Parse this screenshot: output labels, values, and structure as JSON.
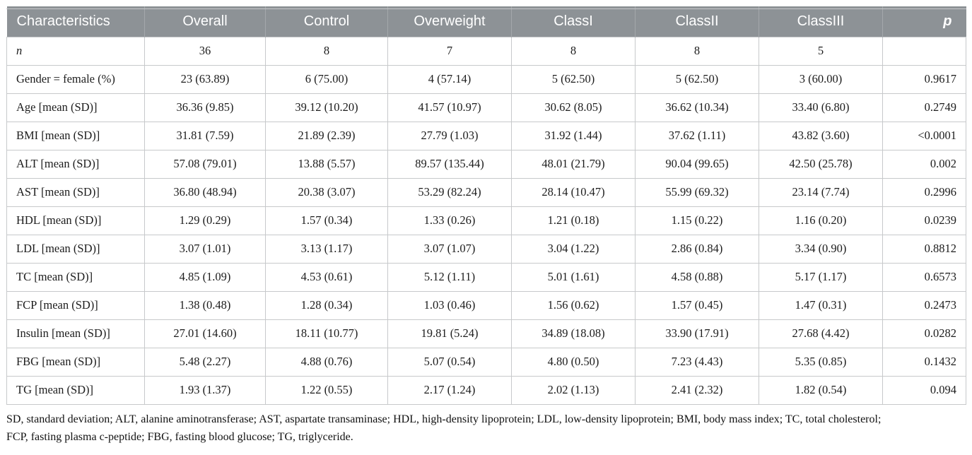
{
  "table": {
    "columns": [
      "Characteristics",
      "Overall",
      "Control",
      "Overweight",
      "ClassI",
      "ClassII",
      "ClassIII",
      "p"
    ],
    "rows": [
      {
        "label": "n",
        "italic": true,
        "values": [
          "36",
          "8",
          "7",
          "8",
          "8",
          "5",
          ""
        ]
      },
      {
        "label": "Gender = female (%)",
        "italic": false,
        "values": [
          "23 (63.89)",
          "6 (75.00)",
          "4 (57.14)",
          "5 (62.50)",
          "5 (62.50)",
          "3 (60.00)",
          "0.9617"
        ]
      },
      {
        "label": "Age [mean (SD)]",
        "italic": false,
        "values": [
          "36.36 (9.85)",
          "39.12 (10.20)",
          "41.57 (10.97)",
          "30.62 (8.05)",
          "36.62 (10.34)",
          "33.40 (6.80)",
          "0.2749"
        ]
      },
      {
        "label": "BMI [mean (SD)]",
        "italic": false,
        "values": [
          "31.81 (7.59)",
          "21.89 (2.39)",
          "27.79 (1.03)",
          "31.92 (1.44)",
          "37.62 (1.11)",
          "43.82 (3.60)",
          "<0.0001"
        ]
      },
      {
        "label": "ALT [mean (SD)]",
        "italic": false,
        "values": [
          "57.08 (79.01)",
          "13.88 (5.57)",
          "89.57 (135.44)",
          "48.01 (21.79)",
          "90.04 (99.65)",
          "42.50 (25.78)",
          "0.002"
        ]
      },
      {
        "label": "AST [mean (SD)]",
        "italic": false,
        "values": [
          "36.80 (48.94)",
          "20.38 (3.07)",
          "53.29 (82.24)",
          "28.14 (10.47)",
          "55.99 (69.32)",
          "23.14 (7.74)",
          "0.2996"
        ]
      },
      {
        "label": "HDL [mean (SD)]",
        "italic": false,
        "values": [
          "1.29 (0.29)",
          "1.57 (0.34)",
          "1.33 (0.26)",
          "1.21 (0.18)",
          "1.15 (0.22)",
          "1.16 (0.20)",
          "0.0239"
        ]
      },
      {
        "label": "LDL [mean (SD)]",
        "italic": false,
        "values": [
          "3.07 (1.01)",
          "3.13 (1.17)",
          "3.07 (1.07)",
          "3.04 (1.22)",
          "2.86 (0.84)",
          "3.34 (0.90)",
          "0.8812"
        ]
      },
      {
        "label": "TC [mean (SD)]",
        "italic": false,
        "values": [
          "4.85 (1.09)",
          "4.53 (0.61)",
          "5.12 (1.11)",
          "5.01 (1.61)",
          "4.58 (0.88)",
          "5.17 (1.17)",
          "0.6573"
        ]
      },
      {
        "label": "FCP [mean (SD)]",
        "italic": false,
        "values": [
          "1.38 (0.48)",
          "1.28 (0.34)",
          "1.03 (0.46)",
          "1.56 (0.62)",
          "1.57 (0.45)",
          "1.47 (0.31)",
          "0.2473"
        ]
      },
      {
        "label": "Insulin [mean (SD)]",
        "italic": false,
        "values": [
          "27.01 (14.60)",
          "18.11 (10.77)",
          "19.81 (5.24)",
          "34.89 (18.08)",
          "33.90 (17.91)",
          "27.68 (4.42)",
          "0.0282"
        ]
      },
      {
        "label": "FBG [mean (SD)]",
        "italic": false,
        "values": [
          "5.48 (2.27)",
          "4.88 (0.76)",
          "5.07 (0.54)",
          "4.80 (0.50)",
          "7.23 (4.43)",
          "5.35 (0.85)",
          "0.1432"
        ]
      },
      {
        "label": "TG [mean (SD)]",
        "italic": false,
        "values": [
          "1.93 (1.37)",
          "1.22 (0.55)",
          "2.17 (1.24)",
          "2.02 (1.13)",
          "2.41 (2.32)",
          "1.82 (0.54)",
          "0.094"
        ]
      }
    ],
    "footnote_lines": [
      "SD, standard deviation; ALT, alanine aminotransferase; AST, aspartate transaminase; HDL, high-density lipoprotein; LDL, low-density lipoprotein; BMI, body mass index; TC, total cholesterol;",
      "FCP, fasting plasma c-peptide; FBG, fasting blood glucose; TG, triglyceride."
    ]
  },
  "colors": {
    "header_bg": "#8d9296",
    "header_text": "#ffffff",
    "border": "#c7c9cb",
    "body_text": "#1c1c1c"
  }
}
